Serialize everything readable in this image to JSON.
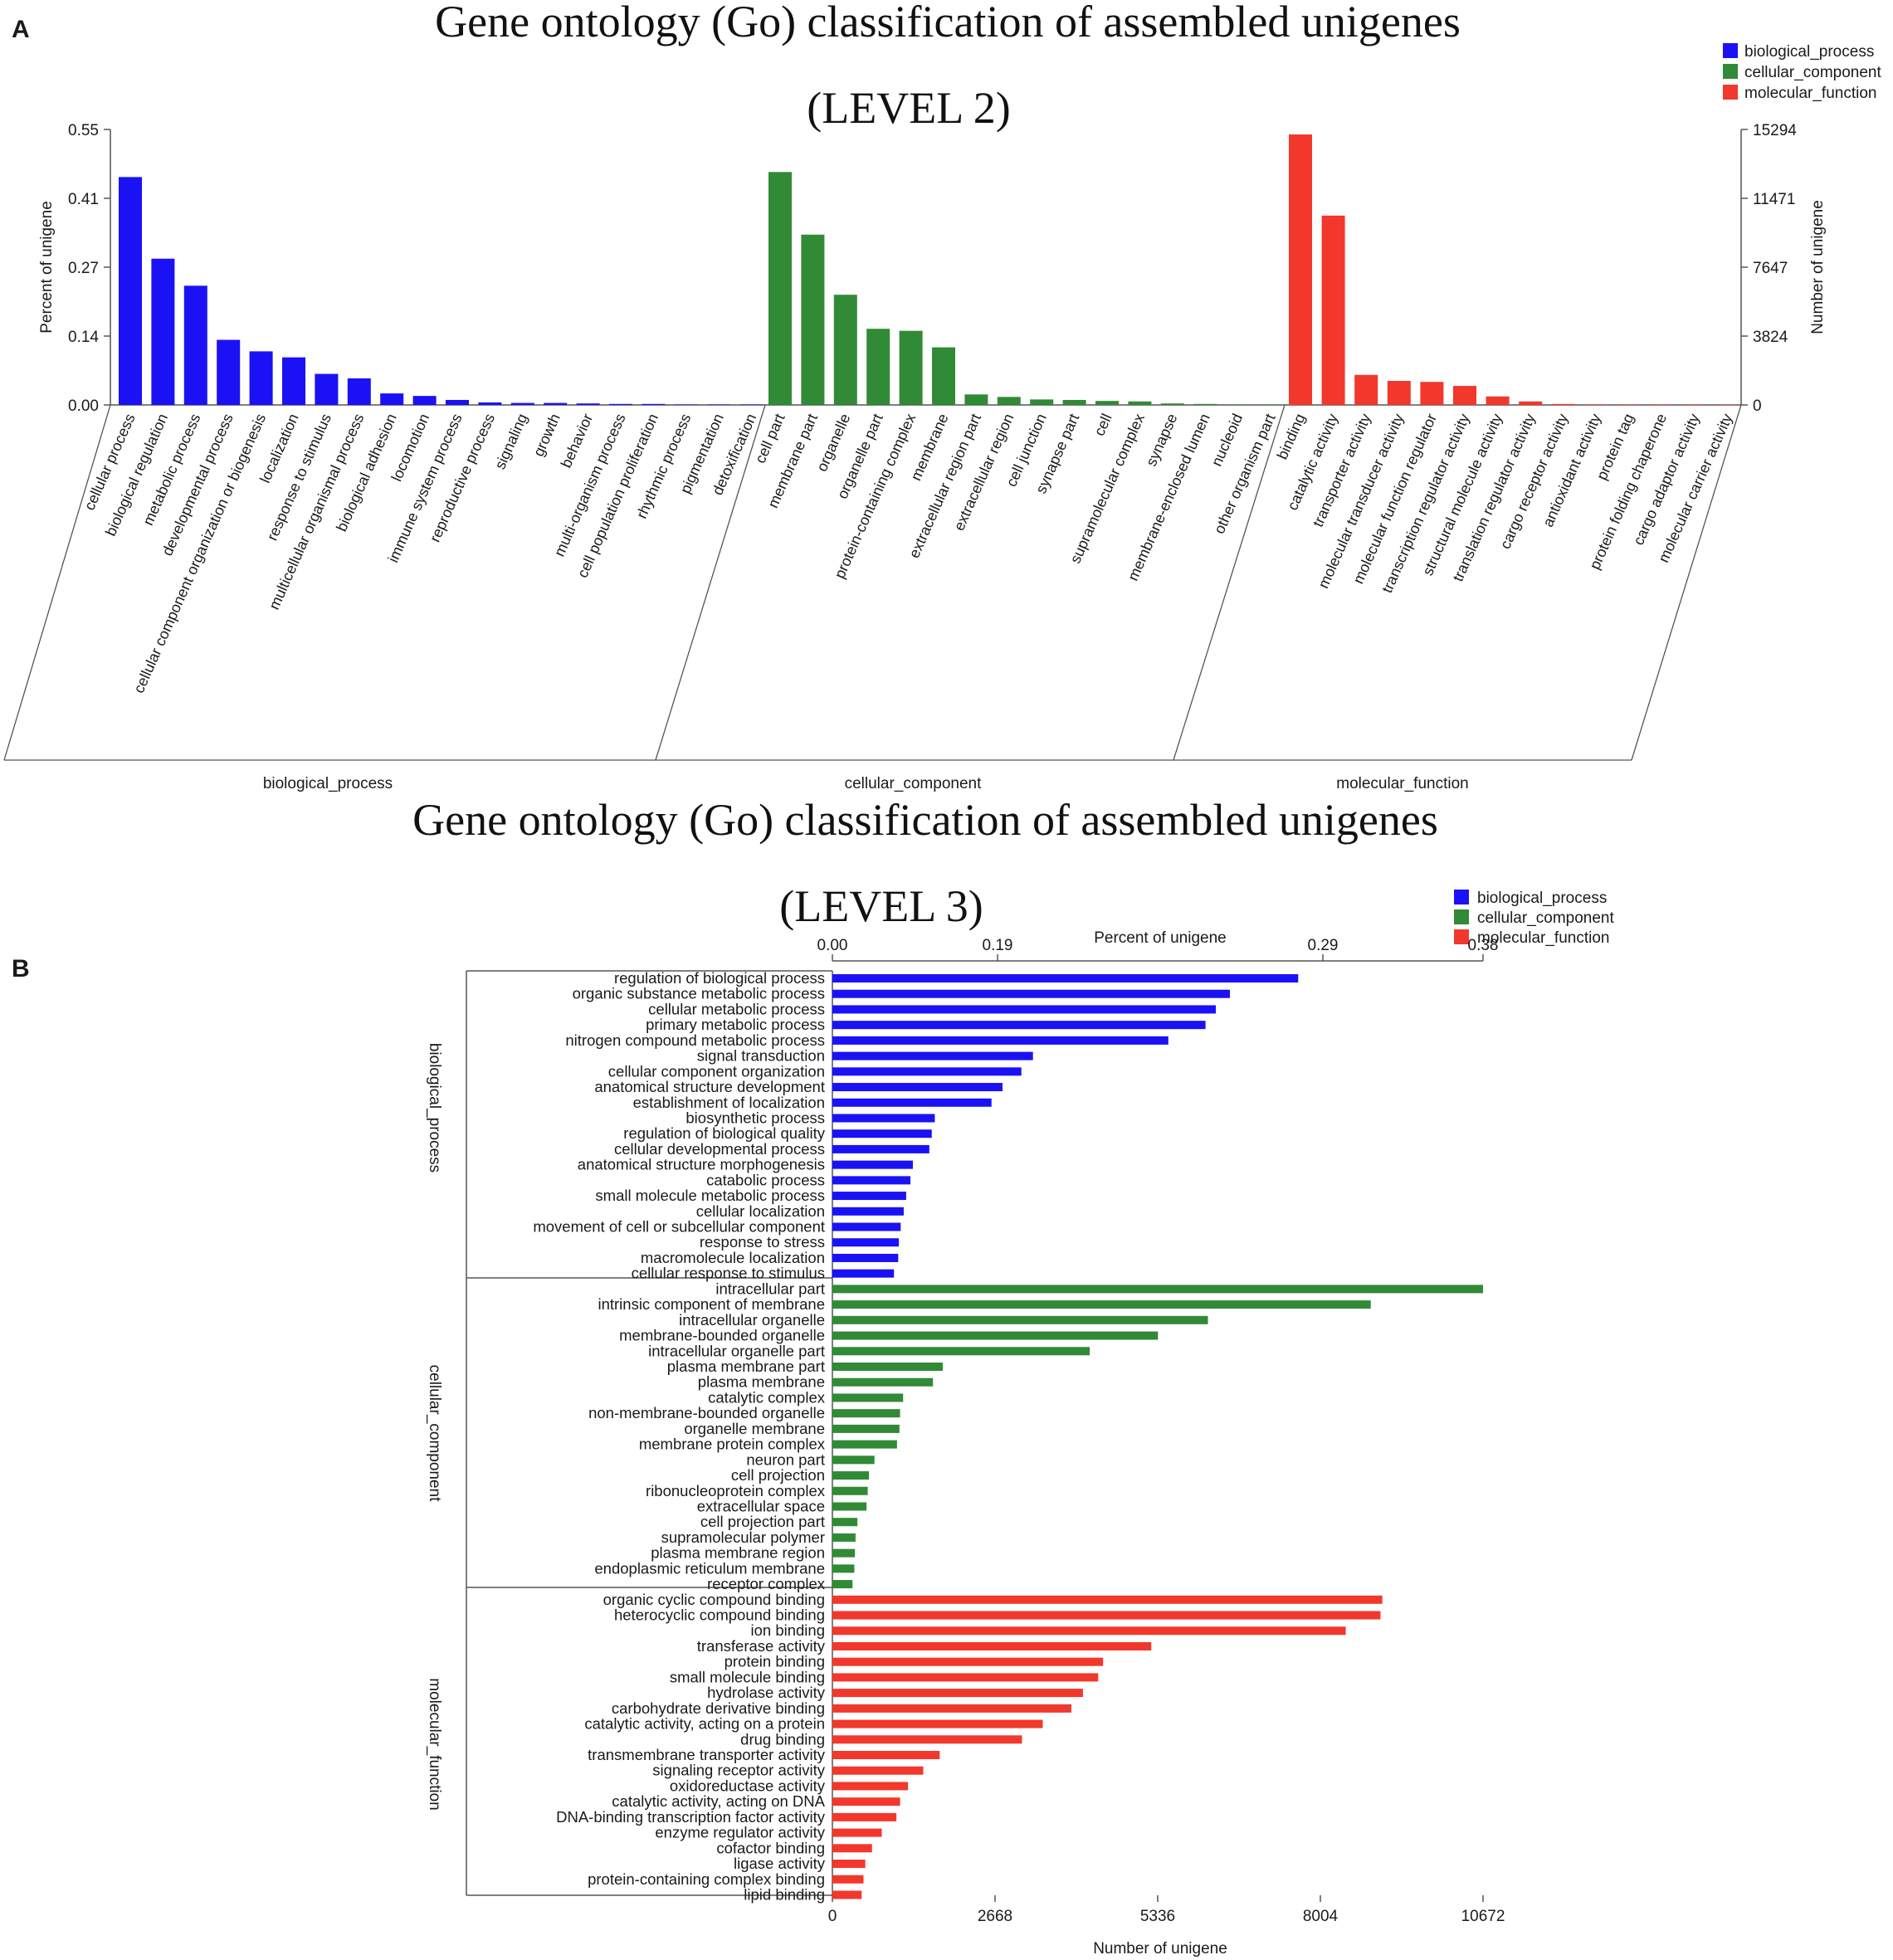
{
  "colors": {
    "biological_process": "#1a12f5",
    "cellular_component": "#318a36",
    "molecular_function": "#f2382c",
    "axis": "#555555"
  },
  "panels": {
    "a_letter": "A",
    "b_letter": "B",
    "a_title_line1": "Gene ontology (Go) classification of assembled unigenes",
    "a_title_line2": "(LEVEL 2)",
    "b_title_line1": "Gene ontology (Go) classification of assembled unigenes",
    "b_title_line2": "(LEVEL 3)"
  },
  "legend": {
    "items": [
      "biological_process",
      "cellular_component",
      "molecular_function"
    ]
  },
  "chart_data": [
    {
      "type": "bar",
      "title": "Gene ontology (Go) classification of assembled unigenes (LEVEL 2)",
      "ylabel": "Percent of unigene",
      "y2label": "Number of unigene",
      "ylim": [
        0,
        0.55
      ],
      "y_ticks": [
        "0.00",
        "0.14",
        "0.27",
        "0.41",
        "0.55"
      ],
      "y2_ticks": [
        "0",
        "3824",
        "7647",
        "11471",
        "15294"
      ],
      "legend_position": "top-right",
      "groups": [
        {
          "name": "biological_process",
          "color_key": "biological_process",
          "categories": [
            "cellular process",
            "biological regulation",
            "metabolic process",
            "developmental process",
            "cellular component organization or biogenesis",
            "localization",
            "response to stimulus",
            "multicellular organismal process",
            "biological adhesion",
            "locomotion",
            "immune system process",
            "reproductive process",
            "signaling",
            "growth",
            "behavior",
            "multi-organism process",
            "cell population proliferation",
            "rhythmic process",
            "pigmentation",
            "detoxification"
          ],
          "values": [
            0.455,
            0.292,
            0.238,
            0.13,
            0.107,
            0.095,
            0.062,
            0.053,
            0.023,
            0.018,
            0.01,
            0.005,
            0.004,
            0.004,
            0.003,
            0.002,
            0.002,
            0.001,
            0.0005,
            0.0003
          ]
        },
        {
          "name": "cellular_component",
          "color_key": "cellular_component",
          "categories": [
            "cell part",
            "membrane part",
            "organelle",
            "organelle part",
            "protein-containing complex",
            "membrane",
            "extracellular region part",
            "extracellular region",
            "cell junction",
            "synapse part",
            "cell",
            "supramolecular complex",
            "synapse",
            "membrane-enclosed lumen",
            "nucleoid",
            "other organism part"
          ],
          "values": [
            0.465,
            0.34,
            0.22,
            0.152,
            0.148,
            0.115,
            0.021,
            0.016,
            0.011,
            0.01,
            0.008,
            0.007,
            0.003,
            0.002,
            0.0005,
            0.0003
          ]
        },
        {
          "name": "molecular_function",
          "color_key": "molecular_function",
          "categories": [
            "binding",
            "catalytic activity",
            "transporter activity",
            "molecular transducer activity",
            "molecular function regulator",
            "transcription regulator activity",
            "structural molecule activity",
            "translation regulator activity",
            "cargo receptor activity",
            "antioxidant activity",
            "protein tag",
            "protein folding chaperone",
            "cargo adaptor activity",
            "molecular carrier activity"
          ],
          "values": [
            0.54,
            0.378,
            0.06,
            0.048,
            0.046,
            0.038,
            0.017,
            0.007,
            0.002,
            0.001,
            0.0004,
            0.0003,
            0.0002,
            0.0001
          ]
        }
      ]
    },
    {
      "type": "bar",
      "orientation": "horizontal",
      "title": "Gene ontology (Go) classification of assembled unigenes (LEVEL 3)",
      "xlabel": "Number of unigene",
      "x2label": "Percent of unigene",
      "xlim": [
        0,
        10672
      ],
      "x_ticks": [
        "0",
        "2668",
        "5336",
        "8004",
        "10672"
      ],
      "x2_ticks": [
        "0.00",
        "0.19",
        "0.29",
        "0.38"
      ],
      "legend_position": "top-right",
      "groups": [
        {
          "name": "biological_process",
          "color_key": "biological_process",
          "categories": [
            "regulation of biological process",
            "organic substance metabolic process",
            "cellular metabolic process",
            "primary metabolic process",
            "nitrogen compound metabolic process",
            "signal transduction",
            "cellular component organization",
            "anatomical structure development",
            "establishment of localization",
            "biosynthetic process",
            "regulation of biological quality",
            "cellular developmental process",
            "anatomical structure morphogenesis",
            "catabolic process",
            "small molecule metabolic process",
            "cellular localization",
            "movement of cell or subcellular component",
            "response to stress",
            "macromolecule localization",
            "cellular response to stimulus"
          ],
          "values": [
            7640,
            6520,
            6290,
            6120,
            5510,
            3290,
            3100,
            2790,
            2610,
            1680,
            1630,
            1590,
            1320,
            1280,
            1210,
            1170,
            1120,
            1090,
            1080,
            1010
          ]
        },
        {
          "name": "cellular_component",
          "color_key": "cellular_component",
          "categories": [
            "intracellular part",
            "intrinsic component of membrane",
            "intracellular organelle",
            "membrane-bounded organelle",
            "intracellular organelle part",
            "plasma membrane part",
            "plasma membrane",
            "catalytic complex",
            "non-membrane-bounded organelle",
            "organelle membrane",
            "membrane protein complex",
            "neuron part",
            "cell projection",
            "ribonucleoprotein complex",
            "extracellular space",
            "cell projection part",
            "supramolecular polymer",
            "plasma membrane region",
            "endoplasmic reticulum membrane",
            "receptor complex"
          ],
          "values": [
            10672,
            8830,
            6160,
            5340,
            4220,
            1810,
            1650,
            1160,
            1110,
            1100,
            1060,
            690,
            600,
            580,
            560,
            410,
            380,
            370,
            360,
            330
          ]
        },
        {
          "name": "molecular_function",
          "color_key": "molecular_function",
          "categories": [
            "organic cyclic compound binding",
            "heterocyclic compound binding",
            "ion binding",
            "transferase activity",
            "protein binding",
            "small molecule binding",
            "hydrolase activity",
            "carbohydrate derivative binding",
            "catalytic activity, acting on a protein",
            "drug binding",
            "transmembrane transporter activity",
            "signaling receptor activity",
            "oxidoreductase activity",
            "catalytic activity, acting on DNA",
            "DNA-binding transcription factor activity",
            "enzyme regulator activity",
            "cofactor binding",
            "ligase activity",
            "protein-containing complex binding",
            "lipid binding"
          ],
          "values": [
            9020,
            8990,
            8420,
            5230,
            4440,
            4360,
            4110,
            3920,
            3450,
            3110,
            1760,
            1490,
            1240,
            1110,
            1050,
            810,
            650,
            540,
            510,
            480
          ]
        }
      ]
    }
  ]
}
